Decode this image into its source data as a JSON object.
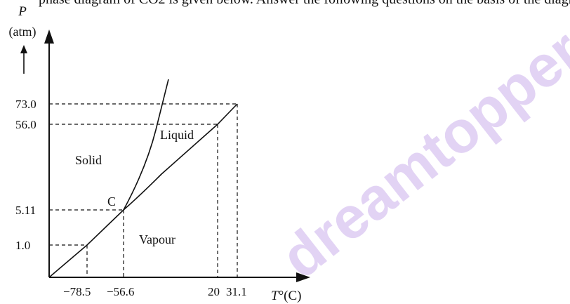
{
  "caption_fragment": "phase diagram of CO2 is given below. Answer the following questions on the basis of the diagram given:",
  "axes": {
    "y_symbol": "P",
    "y_unit": "(atm)",
    "x_symbol": "T",
    "x_unit": "°(C)"
  },
  "pressure_ticks": [
    "73.0",
    "56.0",
    "5.11",
    "1.0"
  ],
  "temperature_ticks": [
    "−78.5",
    "−56.6",
    "20",
    "31.1"
  ],
  "regions": {
    "solid": "Solid",
    "liquid": "Liquid",
    "vapour": "Vapour"
  },
  "triple_point_label": "C",
  "watermark": "dreamtopper.in",
  "colors": {
    "line": "#111111",
    "watermark": "#e2d3f4"
  }
}
